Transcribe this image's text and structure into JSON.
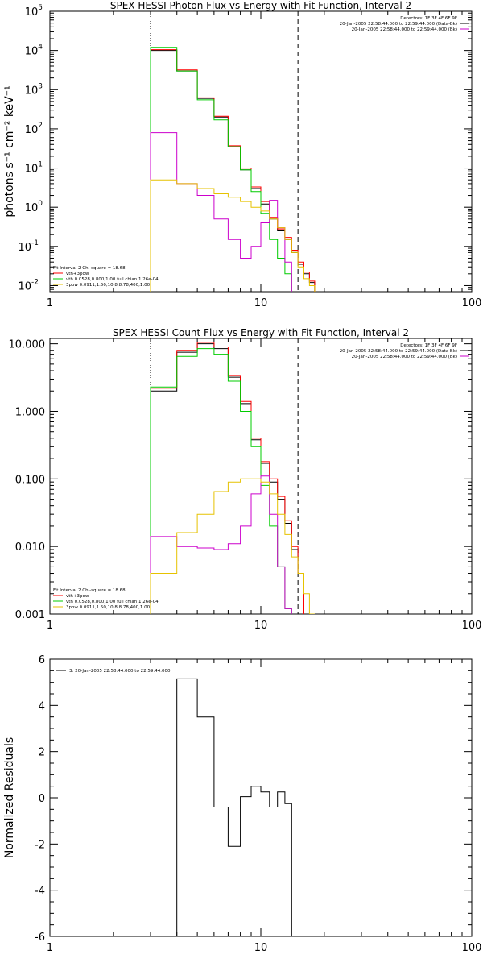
{
  "chart_data": [
    {
      "type": "line",
      "title": "SPEX HESSI Photon Flux vs Energy with Fit Function, Interval 2",
      "ylabel": "photons s⁻¹ cm⁻² keV⁻¹",
      "xlabel": "",
      "xscale": "log",
      "yscale": "log",
      "xlim": [
        1,
        100
      ],
      "ylim": [
        0.007,
        100000
      ],
      "x_ticks": [
        "1",
        "10",
        "100"
      ],
      "y_ticks": [
        {
          "value": 0.01,
          "base": "10",
          "exp": "-2"
        },
        {
          "value": 0.1,
          "base": "10",
          "exp": "-1"
        },
        {
          "value": 1,
          "base": "10",
          "exp": "0"
        },
        {
          "value": 10,
          "base": "10",
          "exp": "1"
        },
        {
          "value": 100,
          "base": "10",
          "exp": "2"
        },
        {
          "value": 1000,
          "base": "10",
          "exp": "3"
        },
        {
          "value": 10000,
          "base": "10",
          "exp": "4"
        },
        {
          "value": 100000,
          "base": "10",
          "exp": "5"
        }
      ],
      "vlines": [
        {
          "x": 3.0,
          "style": "dotted",
          "color": "#000000"
        },
        {
          "x": 15.0,
          "style": "dashed",
          "color": "#000000"
        }
      ],
      "legend_tr": {
        "lines": [
          {
            "text": "Detectors: 1F 3F 4F 6F 9F",
            "color": ""
          },
          {
            "text": "20-Jan-2005 22:58:44.000 to 22:59:44.000 (Data-Bk)",
            "color": "#000000"
          },
          {
            "text": "20-Jan-2005 22:58:44.000 to 22:59:44.000 (Bk)",
            "color": "#cc00cc"
          }
        ]
      },
      "legend_bl": {
        "lines": [
          {
            "text": "Fit Interval 2   Chi-square = 18.68",
            "color": ""
          },
          {
            "text": "vth+3pow",
            "color": "#ff0000"
          },
          {
            "text": "vth 0.0528,0.800,1.00  full chian 1.26e-04",
            "color": "#00cc00"
          },
          {
            "text": "3pow 0.0911,1.50,10.8,8.78,400,1.00",
            "color": "#e6c200"
          }
        ]
      },
      "series": [
        {
          "color": "#000000",
          "edges": [
            3,
            4,
            5,
            6,
            7,
            8,
            9,
            10,
            11,
            12,
            13,
            14,
            15,
            16,
            17,
            18
          ],
          "values": [
            10000,
            3000,
            600,
            200,
            35,
            9,
            3,
            1.2,
            0.5,
            0.25,
            0.15,
            0.07,
            0.035,
            0.02,
            0.012
          ]
        },
        {
          "color": "#ff0000",
          "edges": [
            3,
            4,
            5,
            6,
            7,
            8,
            9,
            10,
            11,
            12,
            13,
            14,
            15,
            16,
            17,
            18
          ],
          "values": [
            10500,
            3200,
            620,
            210,
            37,
            10,
            3.3,
            1.4,
            0.55,
            0.28,
            0.17,
            0.08,
            0.04,
            0.022,
            0.013
          ]
        },
        {
          "color": "#00cc00",
          "edges": [
            3,
            4,
            5,
            6,
            7,
            8,
            9,
            10,
            11,
            12,
            13,
            14
          ],
          "values": [
            12000,
            3000,
            550,
            170,
            35,
            9,
            2.5,
            0.7,
            0.15,
            0.05,
            0.02
          ]
        },
        {
          "color": "#cc00cc",
          "edges": [
            3,
            4,
            5,
            6,
            7,
            8,
            9,
            10,
            11,
            12,
            13,
            14
          ],
          "values": [
            80,
            4,
            2,
            0.5,
            0.15,
            0.05,
            0.1,
            0.4,
            1.5,
            0.3,
            0.04
          ]
        },
        {
          "color": "#e6c200",
          "edges": [
            3,
            4,
            5,
            6,
            7,
            8,
            9,
            10,
            11,
            12,
            13,
            14,
            15,
            16,
            17,
            18
          ],
          "values": [
            5,
            4,
            3,
            2.2,
            1.8,
            1.4,
            1.0,
            0.8,
            0.5,
            0.3,
            0.15,
            0.07,
            0.03,
            0.015,
            0.01
          ]
        }
      ]
    },
    {
      "type": "line",
      "title": "SPEX HESSI Count Flux vs Energy with Fit Function, Interval 2",
      "ylabel": "",
      "xlabel": "",
      "xscale": "log",
      "yscale": "log",
      "xlim": [
        1,
        100
      ],
      "ylim": [
        0.001,
        12
      ],
      "x_ticks": [
        "1",
        "10",
        "100"
      ],
      "y_ticks": [
        {
          "value": 0.001,
          "label": "0.001"
        },
        {
          "value": 0.01,
          "label": "0.010"
        },
        {
          "value": 0.1,
          "label": "0.100"
        },
        {
          "value": 1,
          "label": "1.000"
        },
        {
          "value": 10,
          "label": "10.000"
        }
      ],
      "vlines": [
        {
          "x": 3.0,
          "style": "dotted",
          "color": "#000000"
        },
        {
          "x": 15.0,
          "style": "dashed",
          "color": "#000000"
        }
      ],
      "legend_tr": {
        "lines": [
          {
            "text": "Detectors: 1F 3F 4F 6F 9F",
            "color": ""
          },
          {
            "text": "20-Jan-2005 22:58:44.000 to 22:59:44.000 (Data-Bk)",
            "color": "#000000"
          },
          {
            "text": "20-Jan-2005 22:58:44.000 to 22:59:44.000 (Bk)",
            "color": "#cc00cc"
          }
        ]
      },
      "legend_bl": {
        "lines": [
          {
            "text": "Fit Interval 2   Chi-square = 18.68",
            "color": ""
          },
          {
            "text": "vth+3pow",
            "color": "#ff0000"
          },
          {
            "text": "vth 0.0528,0.800,1.00  full chian 1.26e-04",
            "color": "#00cc00"
          },
          {
            "text": "3pow 0.0911,1.50,10.8,8.78,400,1.00",
            "color": "#e6c200"
          }
        ]
      },
      "series": [
        {
          "color": "#000000",
          "edges": [
            3,
            4,
            5,
            6,
            7,
            8,
            9,
            10,
            11,
            12,
            13,
            14,
            15,
            16
          ],
          "values": [
            2.0,
            7.5,
            10.0,
            8.5,
            3.2,
            1.3,
            0.38,
            0.17,
            0.09,
            0.05,
            0.022,
            0.009,
            0.004
          ]
        },
        {
          "color": "#ff0000",
          "edges": [
            3,
            4,
            5,
            6,
            7,
            8,
            9,
            10,
            11,
            12,
            13,
            14,
            15,
            16
          ],
          "values": [
            2.2,
            8.0,
            10.5,
            9.0,
            3.4,
            1.4,
            0.4,
            0.18,
            0.1,
            0.055,
            0.024,
            0.01,
            0.004
          ]
        },
        {
          "color": "#00cc00",
          "edges": [
            3,
            4,
            5,
            6,
            7,
            8,
            9,
            10,
            11,
            12,
            13,
            14
          ],
          "values": [
            2.3,
            6.5,
            8.5,
            7.0,
            2.8,
            1.0,
            0.3,
            0.08,
            0.02,
            0.005,
            0.0012
          ]
        },
        {
          "color": "#cc00cc",
          "edges": [
            3,
            4,
            5,
            6,
            7,
            8,
            9,
            10,
            11,
            12,
            13,
            14
          ],
          "values": [
            0.014,
            0.01,
            0.0095,
            0.009,
            0.011,
            0.02,
            0.06,
            0.11,
            0.03,
            0.005,
            0.0012
          ]
        },
        {
          "color": "#e6c200",
          "edges": [
            3,
            4,
            5,
            6,
            7,
            8,
            9,
            10,
            11,
            12,
            13,
            14,
            15,
            16,
            17,
            18
          ],
          "values": [
            0.004,
            0.016,
            0.03,
            0.065,
            0.09,
            0.1,
            0.1,
            0.09,
            0.06,
            0.03,
            0.015,
            0.007,
            0.004,
            0.002,
            0.001
          ]
        }
      ]
    },
    {
      "type": "line",
      "title": "",
      "ylabel": "Normalized Residuals",
      "xlabel": "",
      "xscale": "log",
      "yscale": "linear",
      "xlim": [
        1,
        100
      ],
      "ylim": [
        -6,
        6
      ],
      "x_ticks": [
        "1",
        "10",
        "100"
      ],
      "y_ticks": [
        {
          "value": -6,
          "label": "-6"
        },
        {
          "value": -4,
          "label": "-4"
        },
        {
          "value": -2,
          "label": "-2"
        },
        {
          "value": 0,
          "label": "0"
        },
        {
          "value": 2,
          "label": "2"
        },
        {
          "value": 4,
          "label": "4"
        },
        {
          "value": 6,
          "label": "6"
        }
      ],
      "vlines": [],
      "legend_tl": {
        "lines": [
          {
            "text": "3: 20-Jan-2005 22:58:44.000 to 22:59:44.000",
            "color": "#000000"
          }
        ]
      },
      "series": [
        {
          "color": "#000000",
          "edges": [
            3,
            4,
            5,
            6,
            7,
            8,
            9,
            10,
            11,
            12,
            13,
            14,
            15
          ],
          "values": [
            -6.0,
            5.15,
            3.5,
            -0.4,
            -2.1,
            0.05,
            0.5,
            0.25,
            -0.4,
            0.25,
            -0.25,
            -6.0
          ]
        }
      ]
    }
  ]
}
